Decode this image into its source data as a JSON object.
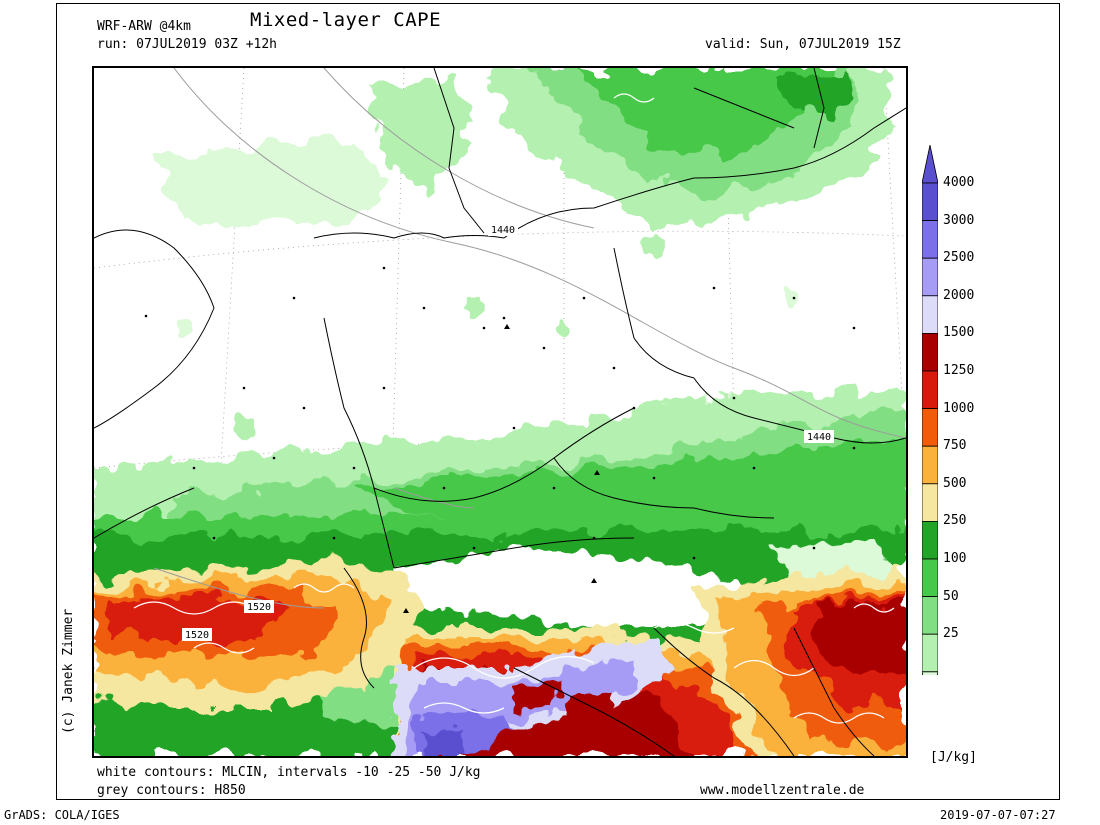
{
  "header": {
    "model": "WRF-ARW @4km",
    "title": "Mixed-layer CAPE",
    "run": "run: 07JUL2019 03Z +12h",
    "valid": "valid: Sun, 07JUL2019 15Z"
  },
  "footer": {
    "white_contours": "white contours: MLCIN, intervals -10 -25 -50 J/kg",
    "grey_contours": "grey contours: H850",
    "website": "www.modellzentrale.de",
    "grads": "GrADS: COLA/IGES",
    "timestamp": "2019-07-07-07:27"
  },
  "copyright": "(c) Janek Zimmer",
  "colorbar": {
    "unit": "[J/kg]",
    "levels": [
      {
        "label": "4000",
        "color": "#5a4fcf"
      },
      {
        "label": "3000",
        "color": "#7b70e8"
      },
      {
        "label": "2500",
        "color": "#a69cf5"
      },
      {
        "label": "2000",
        "color": "#dcdcf8"
      },
      {
        "label": "1500",
        "color": "#a80000"
      },
      {
        "label": "1250",
        "color": "#d81a0c"
      },
      {
        "label": "1000",
        "color": "#f05c0a"
      },
      {
        "label": "750",
        "color": "#fab23c"
      },
      {
        "label": "500",
        "color": "#f5e6a0"
      },
      {
        "label": "250",
        "color": "#22a428"
      },
      {
        "label": "100",
        "color": "#46c84a"
      },
      {
        "label": "50",
        "color": "#82de82"
      },
      {
        "label": "25",
        "color": "#b4f0b0"
      }
    ],
    "lowest_color": "#dcfad8"
  },
  "map": {
    "contour_labels": [
      {
        "text": "1440"
      },
      {
        "text": "1440"
      },
      {
        "text": "1520"
      },
      {
        "text": "1520"
      }
    ]
  }
}
